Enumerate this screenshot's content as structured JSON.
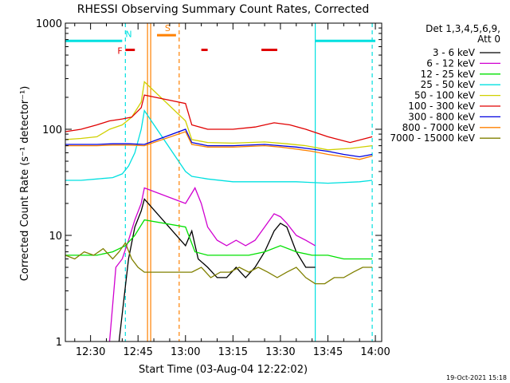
{
  "chart_data": {
    "type": "line",
    "title": "RHESSI Observing Summary Count Rates, Corrected",
    "xlabel": "Start Time (03-Aug-04 12:22:02)",
    "ylabel": "Corrected Count Rate (s⁻¹ detector⁻¹)",
    "y_scale": "log",
    "ylim": [
      1,
      1000
    ],
    "xlim": [
      "12:22:02",
      "14:02:00"
    ],
    "x_ticks": [
      "12:30",
      "12:45",
      "13:00",
      "13:15",
      "13:30",
      "13:45",
      "14:00"
    ],
    "y_ticks": [
      "1",
      "10",
      "100",
      "1000"
    ],
    "footer_date": "19-Oct-2021 15:18",
    "legend": {
      "header_line1": "Det 1,3,4,5,6,9,",
      "header_line2": "Att 0",
      "placement": "right",
      "entries": [
        {
          "label": "3 - 6 keV",
          "color": "#000000"
        },
        {
          "label": "6 - 12 keV",
          "color": "#d000d0"
        },
        {
          "label": "12 - 25 keV",
          "color": "#00e000"
        },
        {
          "label": "25 - 50 keV",
          "color": "#00e0e0"
        },
        {
          "label": "50 - 100 keV",
          "color": "#d0d000"
        },
        {
          "label": "100 - 300 keV",
          "color": "#e00000"
        },
        {
          "label": "300 - 800 keV",
          "color": "#0000e0"
        },
        {
          "label": "800 - 7000 keV",
          "color": "#ff8000"
        },
        {
          "label": "7000 - 15000 keV",
          "color": "#808000"
        }
      ]
    },
    "flags": [
      {
        "label": "N",
        "color": "#00e0e0",
        "intervals": [
          [
            "12:22",
            "12:40"
          ],
          [
            "13:41",
            "14:00"
          ]
        ],
        "level": 680
      },
      {
        "label": "S",
        "color": "#ff8000",
        "intervals": [
          [
            "12:51",
            "12:57"
          ]
        ],
        "level": 770
      },
      {
        "label": "F",
        "color": "#e00000",
        "intervals": [
          [
            "12:41",
            "12:44"
          ],
          [
            "13:05",
            "13:07"
          ],
          [
            "13:24",
            "13:29"
          ]
        ],
        "level": 560
      }
    ],
    "vertical_markers": [
      {
        "time": "12:41",
        "color": "#00e0e0",
        "style": "dashed"
      },
      {
        "time": "12:48",
        "color": "#ff8000",
        "style": "solid"
      },
      {
        "time": "12:49",
        "color": "#ff8000",
        "style": "solid"
      },
      {
        "time": "12:58",
        "color": "#ff8000",
        "style": "dashed"
      },
      {
        "time": "13:41",
        "color": "#00e0e0",
        "style": "solid"
      },
      {
        "time": "13:59",
        "color": "#00e0e0",
        "style": "dashed"
      }
    ],
    "series": [
      {
        "name": "3 - 6 keV",
        "color": "#000000",
        "x": [
          "12:39",
          "12:42",
          "12:44",
          "12:46",
          "12:47",
          "13:00",
          "13:02",
          "13:04",
          "13:07",
          "13:10",
          "13:13",
          "13:16",
          "13:19",
          "13:22",
          "13:25",
          "13:28",
          "13:30",
          "13:32",
          "13:35",
          "13:38",
          "13:41"
        ],
        "y": [
          1.0,
          6,
          12,
          17,
          22,
          8,
          11,
          6,
          5,
          4,
          4,
          5,
          4,
          5,
          7,
          11,
          13,
          12,
          7,
          5,
          5
        ]
      },
      {
        "name": "6 - 12 keV",
        "color": "#d000d0",
        "x": [
          "12:36",
          "12:38",
          "12:40",
          "12:42",
          "12:44",
          "12:46",
          "12:47",
          "13:00",
          "13:02",
          "13:03",
          "13:05",
          "13:07",
          "13:10",
          "13:13",
          "13:16",
          "13:19",
          "13:22",
          "13:25",
          "13:28",
          "13:30",
          "13:32",
          "13:35",
          "13:38",
          "13:41"
        ],
        "y": [
          1.0,
          5,
          6,
          9,
          14,
          20,
          28,
          20,
          25,
          28,
          20,
          12,
          9,
          8,
          9,
          8,
          9,
          12,
          16,
          15,
          13,
          10,
          9,
          8
        ]
      },
      {
        "name": "12 - 25 keV",
        "color": "#00e000",
        "x": [
          "12:22",
          "12:27",
          "12:32",
          "12:37",
          "12:41",
          "12:44",
          "12:47",
          "13:00",
          "13:03",
          "13:07",
          "13:10",
          "13:15",
          "13:20",
          "13:25",
          "13:30",
          "13:35",
          "13:40",
          "13:45",
          "13:50",
          "13:55",
          "13:59"
        ],
        "y": [
          6.5,
          6.5,
          6.5,
          7,
          8,
          10,
          14,
          12,
          7,
          6.5,
          6.5,
          6.5,
          6.5,
          7,
          8,
          7,
          6.5,
          6.5,
          6.0,
          6.0,
          6.0
        ]
      },
      {
        "name": "25 - 50 keV",
        "color": "#00e0e0",
        "x": [
          "12:22",
          "12:27",
          "12:32",
          "12:37",
          "12:40",
          "12:42",
          "12:44",
          "12:46",
          "12:47",
          "13:00",
          "13:02",
          "13:07",
          "13:15",
          "13:25",
          "13:35",
          "13:45",
          "13:55",
          "13:59"
        ],
        "y": [
          33,
          33,
          34,
          35,
          38,
          45,
          60,
          100,
          150,
          40,
          36,
          34,
          32,
          32,
          32,
          31,
          32,
          33
        ]
      },
      {
        "name": "50 - 100 keV",
        "color": "#d0d000",
        "x": [
          "12:22",
          "12:27",
          "12:32",
          "12:36",
          "12:40",
          "12:43",
          "12:46",
          "12:47",
          "13:00",
          "13:02",
          "13:07",
          "13:15",
          "13:25",
          "13:32",
          "13:38",
          "13:45",
          "13:52",
          "13:59"
        ],
        "y": [
          80,
          82,
          85,
          100,
          110,
          130,
          180,
          280,
          120,
          80,
          75,
          74,
          76,
          73,
          70,
          64,
          66,
          70
        ]
      },
      {
        "name": "100 - 300 keV",
        "color": "#e00000",
        "x": [
          "12:22",
          "12:27",
          "12:32",
          "12:36",
          "12:40",
          "12:43",
          "12:46",
          "12:47",
          "13:00",
          "13:02",
          "13:07",
          "13:15",
          "13:22",
          "13:28",
          "13:33",
          "13:38",
          "13:45",
          "13:52",
          "13:59"
        ],
        "y": [
          95,
          100,
          110,
          120,
          125,
          130,
          160,
          210,
          175,
          110,
          100,
          100,
          105,
          115,
          110,
          100,
          85,
          75,
          85
        ]
      },
      {
        "name": "300 - 800 keV",
        "color": "#0000e0",
        "x": [
          "12:22",
          "12:27",
          "12:32",
          "12:37",
          "12:42",
          "12:47",
          "13:00",
          "13:02",
          "13:07",
          "13:15",
          "13:25",
          "13:30",
          "13:35",
          "13:40",
          "13:45",
          "13:50",
          "13:55",
          "13:59"
        ],
        "y": [
          72,
          72,
          72,
          73,
          73,
          72,
          100,
          75,
          70,
          70,
          72,
          70,
          68,
          65,
          62,
          58,
          55,
          58
        ]
      },
      {
        "name": "800 - 7000 keV",
        "color": "#ff8000",
        "x": [
          "12:22",
          "12:27",
          "12:32",
          "12:37",
          "12:42",
          "12:47",
          "13:00",
          "13:02",
          "13:07",
          "13:15",
          "13:25",
          "13:30",
          "13:35",
          "13:40",
          "13:45",
          "13:50",
          "13:55",
          "13:59"
        ],
        "y": [
          70,
          70,
          70,
          71,
          71,
          70,
          95,
          72,
          68,
          68,
          70,
          68,
          65,
          62,
          58,
          55,
          52,
          56
        ]
      },
      {
        "name": "7000 - 15000 keV",
        "color": "#808000",
        "x": [
          "12:22",
          "12:25",
          "12:28",
          "12:31",
          "12:34",
          "12:37",
          "12:39",
          "12:41",
          "12:43",
          "12:45",
          "12:47",
          "13:00",
          "13:02",
          "13:05",
          "13:08",
          "13:11",
          "13:14",
          "13:17",
          "13:20",
          "13:23",
          "13:26",
          "13:29",
          "13:32",
          "13:35",
          "13:38",
          "13:41",
          "13:44",
          "13:47",
          "13:50",
          "13:53",
          "13:56",
          "13:59"
        ],
        "y": [
          6.5,
          6.0,
          7.0,
          6.5,
          7.5,
          6.0,
          7.0,
          8.5,
          6.0,
          5.0,
          4.5,
          4.5,
          4.5,
          5.0,
          4.0,
          4.5,
          4.5,
          5.0,
          4.5,
          5.0,
          4.5,
          4.0,
          4.5,
          5.0,
          4.0,
          3.5,
          3.5,
          4.0,
          4.0,
          4.5,
          5.0,
          5.0
        ]
      }
    ]
  }
}
